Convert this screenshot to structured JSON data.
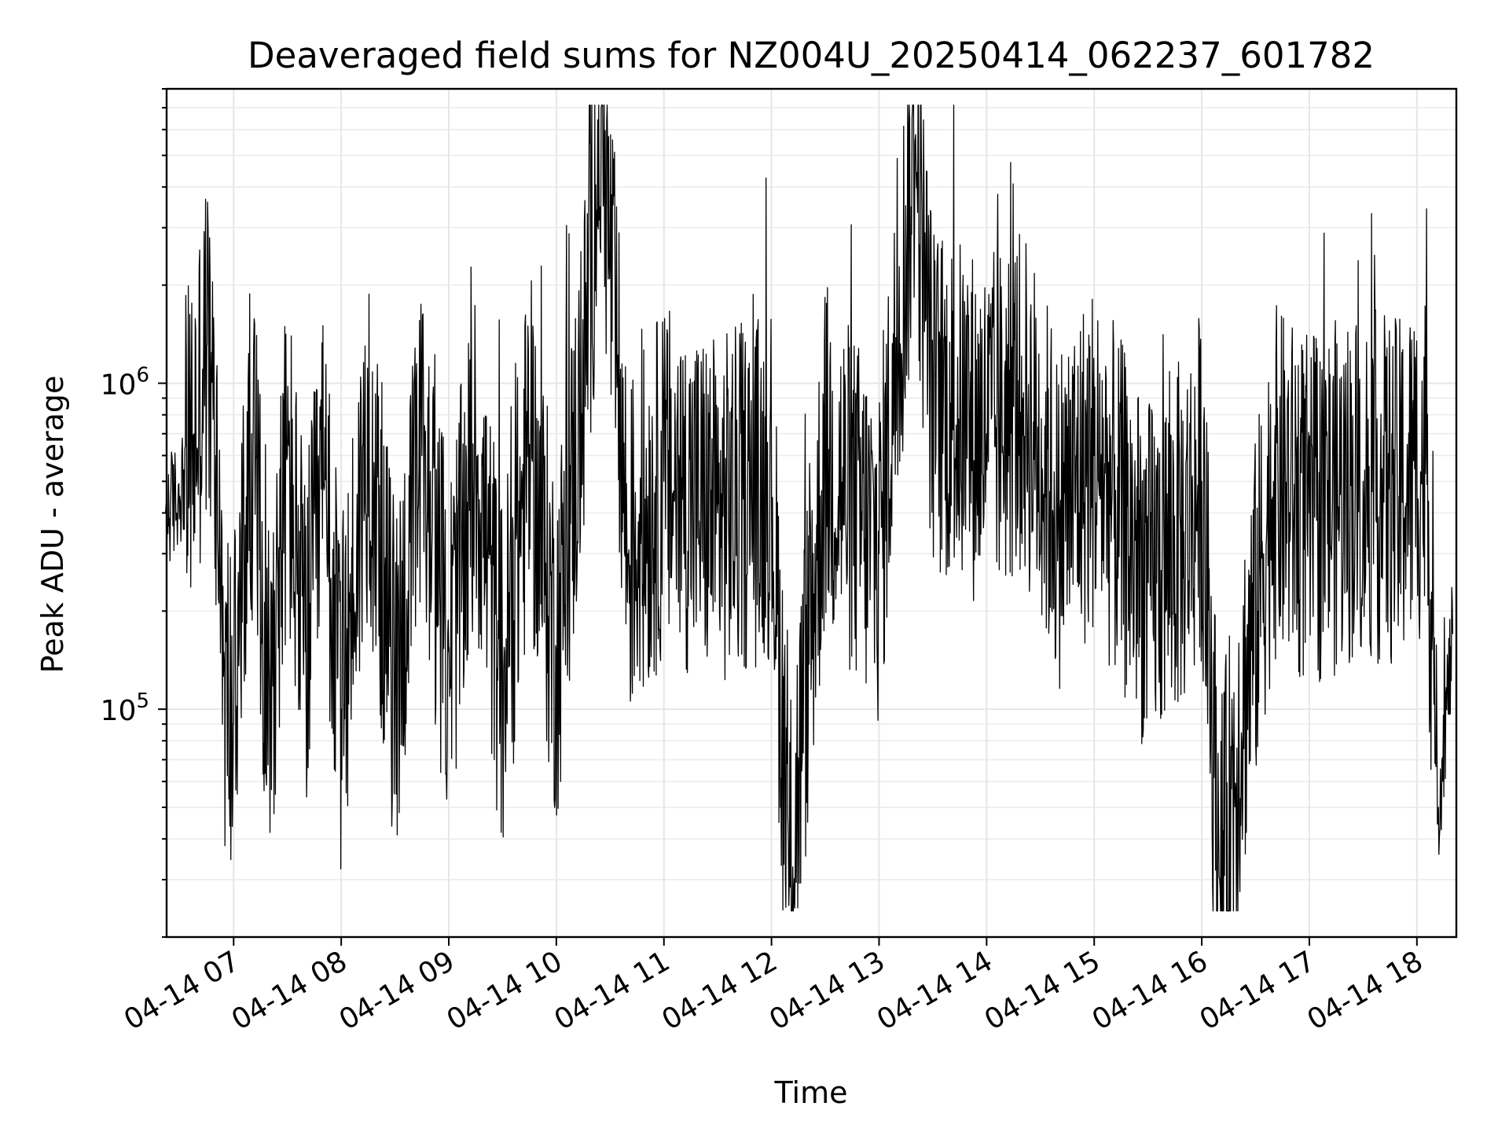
{
  "chart_data": {
    "type": "line",
    "title": "Deaveraged field sums for NZ004U_20250414_062237_601782",
    "xlabel": "Time",
    "ylabel": "Peak ADU - average",
    "yscale": "log",
    "xlim": [
      "2025-04-14T06:22:37",
      "2025-04-14T18:22:00"
    ],
    "ylim": [
      20000,
      8000000
    ],
    "grid": true,
    "x_ticks": [
      "04-14 07",
      "04-14 08",
      "04-14 09",
      "04-14 10",
      "04-14 11",
      "04-14 12",
      "04-14 13",
      "04-14 14",
      "04-14 15",
      "04-14 16",
      "04-14 17",
      "04-14 18"
    ],
    "y_ticks": [
      {
        "base": "10",
        "exp": "5",
        "value": 100000
      },
      {
        "base": "10",
        "exp": "6",
        "value": 1000000
      }
    ],
    "series": [
      {
        "color": "#000000",
        "x": [
          "2025-04-14T06:22",
          "2025-04-14T06:30",
          "2025-04-14T06:38",
          "2025-04-14T06:45",
          "2025-04-14T06:50",
          "2025-04-14T06:55",
          "2025-04-14T07:00",
          "2025-04-14T07:10",
          "2025-04-14T07:20",
          "2025-04-14T07:30",
          "2025-04-14T07:40",
          "2025-04-14T07:50",
          "2025-04-14T08:00",
          "2025-04-14T08:15",
          "2025-04-14T08:30",
          "2025-04-14T08:45",
          "2025-04-14T09:00",
          "2025-04-14T09:15",
          "2025-04-14T09:30",
          "2025-04-14T09:45",
          "2025-04-14T10:00",
          "2025-04-14T10:15",
          "2025-04-14T10:25",
          "2025-04-14T10:40",
          "2025-04-14T11:00",
          "2025-04-14T11:30",
          "2025-04-14T12:00",
          "2025-04-14T12:10",
          "2025-04-14T12:30",
          "2025-04-14T13:00",
          "2025-04-14T13:20",
          "2025-04-14T13:30",
          "2025-04-14T14:00",
          "2025-04-14T14:20",
          "2025-04-14T14:40",
          "2025-04-14T15:00",
          "2025-04-14T15:30",
          "2025-04-14T15:50",
          "2025-04-14T16:00",
          "2025-04-14T16:10",
          "2025-04-14T16:40",
          "2025-04-14T17:00",
          "2025-04-14T17:30",
          "2025-04-14T17:50",
          "2025-04-14T18:05",
          "2025-04-14T18:12",
          "2025-04-14T18:20"
        ],
        "y": [
          400000,
          450000,
          700000,
          1300000,
          600000,
          130000,
          90000,
          700000,
          110000,
          600000,
          150000,
          500000,
          100000,
          700000,
          120000,
          600000,
          150000,
          600000,
          120000,
          650000,
          150000,
          1000000,
          7000000,
          300000,
          500000,
          400000,
          500000,
          30000,
          600000,
          300000,
          5500000,
          900000,
          700000,
          900000,
          400000,
          600000,
          250000,
          350000,
          500000,
          30000,
          500000,
          400000,
          500000,
          450000,
          600000,
          50000,
          170000
        ]
      }
    ]
  }
}
